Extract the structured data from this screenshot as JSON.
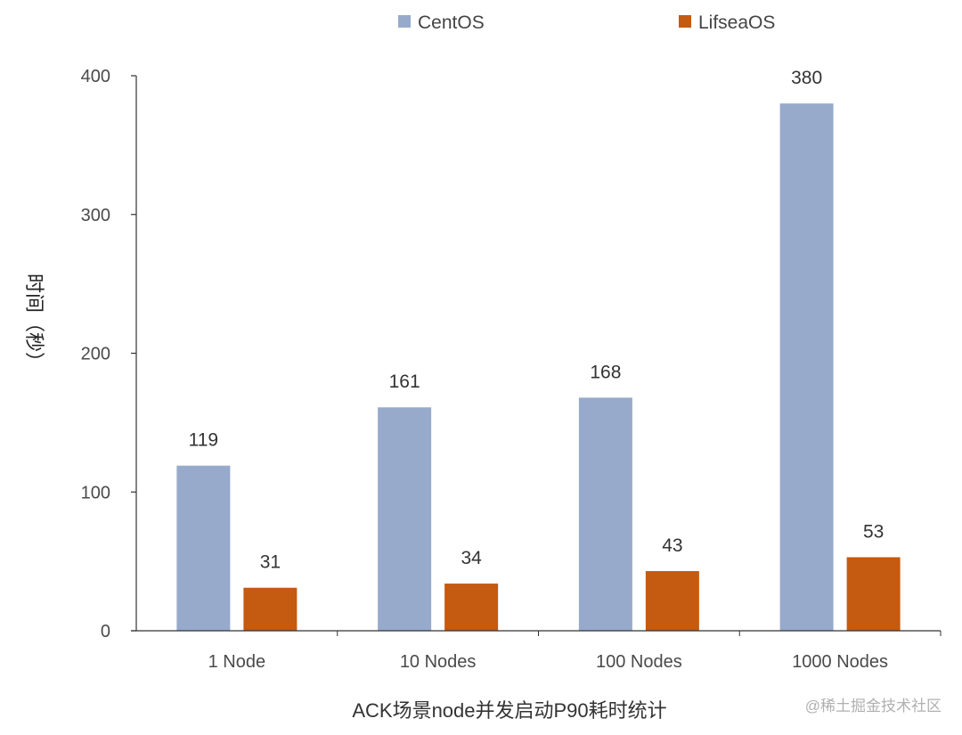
{
  "chart_data": {
    "type": "bar",
    "title": "",
    "categories": [
      "1 Node",
      "10 Nodes",
      "100 Nodes",
      "1000 Nodes"
    ],
    "series": [
      {
        "name": "CentOS",
        "color": "#97aacb",
        "values": [
          119,
          161,
          168,
          380
        ]
      },
      {
        "name": "LifseaOS",
        "color": "#c55a11",
        "values": [
          31,
          34,
          43,
          53
        ]
      }
    ],
    "xlabel": "ACK场景node并发启动P90耗时统计",
    "ylabel": "时间（秒）",
    "ylim": [
      0,
      400
    ],
    "yticks": [
      0,
      100,
      200,
      300,
      400
    ],
    "legend": "top-center"
  },
  "watermark": "@稀土掘金技术社区"
}
